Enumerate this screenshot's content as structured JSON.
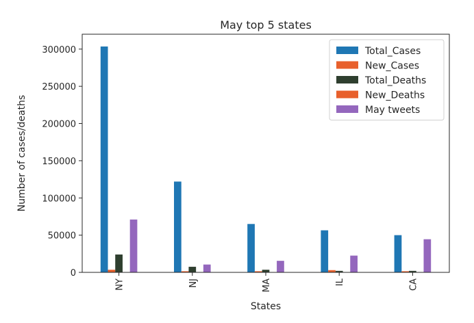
{
  "chart_data": {
    "type": "bar",
    "title": "May top 5 states",
    "xlabel": "States",
    "ylabel": "Number of cases/deaths",
    "categories": [
      "NY",
      "NJ",
      "MA",
      "IL",
      "CA"
    ],
    "ylim": [
      0,
      320000
    ],
    "yticks": [
      0,
      50000,
      100000,
      150000,
      200000,
      250000,
      300000
    ],
    "grid": false,
    "legend_position": "top-right",
    "series": [
      {
        "name": "Total_Cases",
        "color": "#1f77b4",
        "values": [
          303500,
          122000,
          65000,
          56500,
          50000
        ]
      },
      {
        "name": "New_Cases",
        "color": "#e8602c",
        "values": [
          3500,
          1500,
          1500,
          3000,
          1500
        ]
      },
      {
        "name": "Total_Deaths",
        "color": "#2f3f2f",
        "values": [
          24000,
          7500,
          3500,
          2000,
          2000
        ]
      },
      {
        "name": "New_Deaths",
        "color": "#e8602c",
        "values": [
          200,
          150,
          100,
          100,
          80
        ]
      },
      {
        "name": "May tweets",
        "color": "#9467bd",
        "values": [
          71000,
          10500,
          15500,
          22500,
          44500
        ]
      }
    ]
  }
}
